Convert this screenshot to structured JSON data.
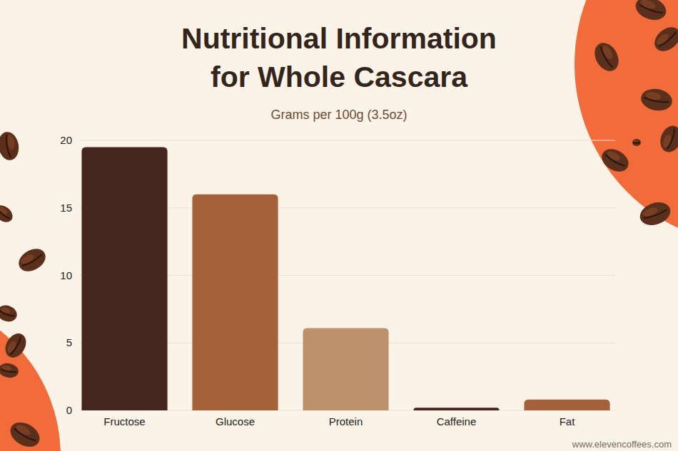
{
  "chart_data": {
    "type": "bar",
    "title": "Nutritional Information\nfor Whole Cascara",
    "subtitle": "Grams per 100g (3.5oz)",
    "source": "www.elevencoffees.com",
    "categories": [
      "Fructose",
      "Glucose",
      "Protein",
      "Caffeine",
      "Fat"
    ],
    "values": [
      19.5,
      16,
      6.1,
      0.2,
      0.8
    ],
    "colors": [
      "#45261e",
      "#a4623a",
      "#bb926c",
      "#45261e",
      "#a4623a"
    ],
    "ylim": [
      0,
      20
    ],
    "yticks": [
      0,
      5,
      10,
      15,
      20
    ],
    "grid": true
  }
}
